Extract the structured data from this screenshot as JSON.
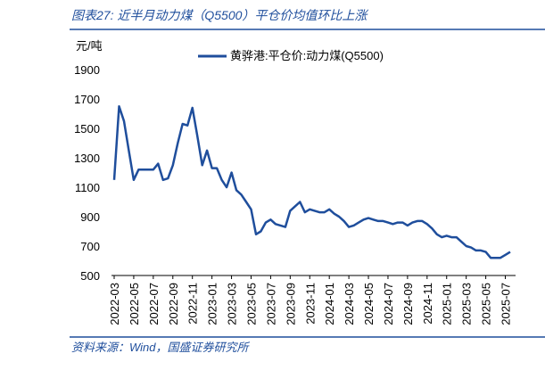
{
  "chart_data": {
    "type": "line",
    "title": "图表27: 近半月动力煤（Q5500）平仓价均值环比上涨",
    "source": "资料来源：Wind，国盛证券研究所",
    "y_label": "元/吨",
    "categories": [
      "2022-03",
      null,
      null,
      null,
      "2022-05",
      null,
      null,
      null,
      "2022-07",
      null,
      null,
      null,
      "2022-09",
      null,
      null,
      null,
      "2022-11",
      null,
      null,
      null,
      "2023-01",
      null,
      null,
      null,
      "2023-03",
      null,
      null,
      null,
      "2023-05",
      null,
      null,
      null,
      "2023-07",
      null,
      null,
      null,
      "2023-09",
      null,
      null,
      null,
      "2023-11",
      null,
      null,
      null,
      "2024-01",
      null,
      null,
      null,
      "2024-03",
      null,
      null,
      null,
      "2024-05",
      null,
      null,
      null,
      "2024-07",
      null,
      null,
      null,
      "2024-09",
      null,
      null,
      null,
      "2024-11",
      null,
      null,
      null,
      "2025-01",
      null,
      null,
      null,
      "2025-03",
      null,
      null,
      null,
      "2025-05",
      null,
      null,
      null,
      "2025-07",
      null
    ],
    "series": [
      {
        "name": "黄骅港:平仓价:动力煤(Q5500)",
        "color": "#1f4e9c",
        "values": [
          1150,
          1650,
          1550,
          1350,
          1150,
          1220,
          1220,
          1220,
          1220,
          1260,
          1150,
          1160,
          1250,
          1400,
          1530,
          1520,
          1640,
          1450,
          1250,
          1350,
          1230,
          1230,
          1150,
          1100,
          1200,
          1080,
          1050,
          1000,
          950,
          780,
          800,
          860,
          880,
          850,
          840,
          830,
          940,
          970,
          1000,
          930,
          950,
          940,
          930,
          930,
          950,
          920,
          900,
          870,
          830,
          840,
          860,
          880,
          890,
          880,
          870,
          870,
          860,
          850,
          860,
          860,
          840,
          860,
          870,
          870,
          850,
          820,
          780,
          760,
          770,
          760,
          760,
          730,
          700,
          690,
          670,
          670,
          660,
          620,
          620,
          620,
          640,
          660
        ]
      }
    ],
    "ylim": [
      500,
      1900
    ],
    "yticks": [
      500,
      700,
      900,
      1100,
      1300,
      1500,
      1700,
      1900
    ]
  }
}
